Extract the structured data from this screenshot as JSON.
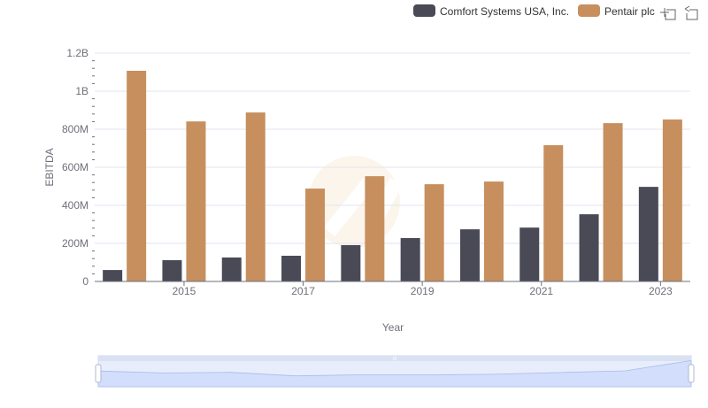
{
  "chart_data": {
    "type": "bar",
    "title": "",
    "xlabel": "Year",
    "ylabel": "EBITDA",
    "ylim": [
      0,
      1200000000
    ],
    "y_ticks": [
      {
        "value": 0,
        "label": "0"
      },
      {
        "value": 200000000,
        "label": "200M"
      },
      {
        "value": 400000000,
        "label": "400M"
      },
      {
        "value": 600000000,
        "label": "600M"
      },
      {
        "value": 800000000,
        "label": "800M"
      },
      {
        "value": 1000000000,
        "label": "1B"
      },
      {
        "value": 1200000000,
        "label": "1.2B"
      }
    ],
    "categories": [
      "2014",
      "2015",
      "2016",
      "2017",
      "2018",
      "2019",
      "2020",
      "2021",
      "2022",
      "2023"
    ],
    "x_tick_labels": [
      "2015",
      "2017",
      "2019",
      "2021",
      "2023"
    ],
    "grid": true,
    "legend_position": "top-right",
    "series": [
      {
        "name": "Comfort Systems USA, Inc.",
        "color": "#4a4a57",
        "values": [
          60000000,
          112000000,
          126000000,
          135000000,
          191000000,
          228000000,
          274000000,
          283000000,
          353000000,
          497000000
        ]
      },
      {
        "name": "Pentair plc",
        "color": "#c78f5e",
        "values": [
          1107000000,
          841000000,
          888000000,
          488000000,
          553000000,
          511000000,
          525000000,
          716000000,
          832000000,
          851000000
        ]
      }
    ]
  },
  "toolbox": {
    "zoom_icon": "zoom-select-icon",
    "reset_icon": "zoom-reset-icon"
  },
  "datazoom": {
    "start_percent": 0,
    "end_percent": 100,
    "handle_label": "III"
  }
}
